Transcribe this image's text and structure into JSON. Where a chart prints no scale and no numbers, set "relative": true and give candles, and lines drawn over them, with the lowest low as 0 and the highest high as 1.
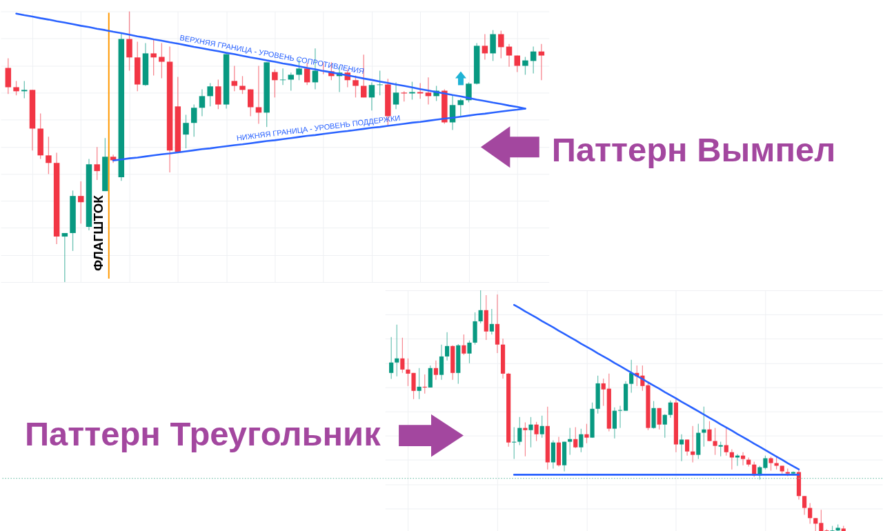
{
  "chart_data": [
    {
      "type": "candlestick",
      "title": "Паттерн Вымпел",
      "relative": true,
      "grid": true,
      "annotations": [
        "ФЛАГШТОК"
      ],
      "categories": [
        null,
        null,
        null,
        null,
        null,
        null,
        null,
        null,
        null,
        null,
        null,
        null,
        null,
        null,
        null,
        null,
        null,
        null,
        null,
        null,
        null,
        null,
        null,
        null,
        null,
        null,
        null,
        null,
        null,
        null,
        null,
        null,
        null,
        null,
        null,
        null,
        null,
        null,
        null,
        null,
        null,
        null,
        null,
        null,
        null,
        null,
        null,
        null,
        null,
        null,
        null,
        null,
        null,
        null,
        null,
        null,
        null,
        null,
        null,
        null,
        null,
        null,
        null,
        null,
        null,
        null,
        null
      ],
      "ohlc": [
        [
          0.791,
          0.827,
          0.695,
          0.72
        ],
        [
          0.72,
          0.743,
          0.69,
          0.705
        ],
        [
          0.705,
          0.743,
          0.679,
          0.71
        ],
        [
          0.71,
          0.71,
          0.486,
          0.567
        ],
        [
          0.567,
          0.623,
          0.455,
          0.468
        ],
        [
          0.468,
          0.537,
          0.399,
          0.44
        ],
        [
          0.44,
          0.478,
          0.14,
          0.168
        ],
        [
          0.168,
          0.181,
          0,
          0.181
        ],
        [
          0.181,
          0.338,
          0.115,
          0.318
        ],
        [
          0.318,
          0.372,
          0.216,
          0.295
        ],
        [
          0.204,
          0.455,
          0.191,
          0.435
        ],
        [
          0.435,
          0.499,
          0.377,
          0.41
        ],
        [
          0.336,
          0.532,
          0.336,
          0.463
        ],
        [
          0.463,
          0.471,
          0.44,
          0.45
        ],
        [
          0.387,
          0.919,
          0.374,
          0.898
        ],
        [
          0.898,
          1,
          0.781,
          0.83
        ],
        [
          0.83,
          0.888,
          0.705,
          0.73
        ],
        [
          0.728,
          0.883,
          0.725,
          0.845
        ],
        [
          0.845,
          0.896,
          0.763,
          0.83
        ],
        [
          0.832,
          0.883,
          0.753,
          0.814
        ],
        [
          0.814,
          0.87,
          0.405,
          0.486
        ],
        [
          0.649,
          0.758,
          0.481,
          0.481
        ],
        [
          0.545,
          0.618,
          0.494,
          0.588
        ],
        [
          0.588,
          0.656,
          0.537,
          0.644
        ],
        [
          0.644,
          0.712,
          0.613,
          0.687
        ],
        [
          0.687,
          0.735,
          0.649,
          0.723
        ],
        [
          0.723,
          0.748,
          0.639,
          0.656
        ],
        [
          0.656,
          0.842,
          0.641,
          0.842
        ],
        [
          0.743,
          0.799,
          0.705,
          0.725
        ],
        [
          0.725,
          0.761,
          0.695,
          0.71
        ],
        [
          0.712,
          0.712,
          0.613,
          0.646
        ],
        [
          0.646,
          0.799,
          0.585,
          0.626
        ],
        [
          0.626,
          0.812,
          0.573,
          0.812
        ],
        [
          0.776,
          0.786,
          0.682,
          0.746
        ],
        [
          0.746,
          0.789,
          0.728,
          0.748
        ],
        [
          0.748,
          0.774,
          0.707,
          0.766
        ],
        [
          0.766,
          0.824,
          0.746,
          0.789
        ],
        [
          0.789,
          0.809,
          0.728,
          0.738
        ],
        [
          0.738,
          0.863,
          0.712,
          0.781
        ],
        [
          0.781,
          0.812,
          0.768,
          0.779
        ],
        [
          0.779,
          0.812,
          0.746,
          0.761
        ],
        [
          0.761,
          0.796,
          0.702,
          0.774
        ],
        [
          0.774,
          0.786,
          0.72,
          0.746
        ],
        [
          0.746,
          0.763,
          0.682,
          0.725
        ],
        [
          0.725,
          0.84,
          0.682,
          0.682
        ],
        [
          0.682,
          0.738,
          0.634,
          0.728
        ],
        [
          0.728,
          0.781,
          0.69,
          0.73
        ],
        [
          0.73,
          0.751,
          0.575,
          0.613
        ],
        [
          0.656,
          0.738,
          0.639,
          0.7
        ],
        [
          0.7,
          0.705,
          0.667,
          0.697
        ],
        [
          0.697,
          0.74,
          0.674,
          0.702
        ],
        [
          0.702,
          0.735,
          0.677,
          0.697
        ],
        [
          0.7,
          0.756,
          0.656,
          0.687
        ],
        [
          0.687,
          0.725,
          0.669,
          0.707
        ],
        [
          0.707,
          0.712,
          0.585,
          0.59
        ],
        [
          0.59,
          0.69,
          0.562,
          0.654
        ],
        [
          0.654,
          0.677,
          0.613,
          0.672
        ],
        [
          0.672,
          0.738,
          0.664,
          0.733
        ],
        [
          0.733,
          0.883,
          0.73,
          0.873
        ],
        [
          0.873,
          0.916,
          0.822,
          0.845
        ],
        [
          0.845,
          0.931,
          0.817,
          0.916
        ],
        [
          0.916,
          0.929,
          0.827,
          0.868
        ],
        [
          0.87,
          0.88,
          0.796,
          0.837
        ],
        [
          0.837,
          0.837,
          0.776,
          0.799
        ],
        [
          0.799,
          0.832,
          0.766,
          0.819
        ],
        [
          0.817,
          0.87,
          0.771,
          0.852
        ],
        [
          0.852,
          0.88,
          0.746,
          0.837
        ]
      ],
      "colors": [
        "#f23645",
        "#f23645",
        "#089981",
        "#f23645",
        "#f23645",
        "#f23645",
        "#f23645",
        "#089981",
        "#089981",
        "#f23645",
        "#089981",
        "#f23645",
        "#089981",
        "#f23645",
        "#089981",
        "#f23645",
        "#f23645",
        "#089981",
        "#f23645",
        "#f23645",
        "#f23645",
        "#f23645",
        "#089981",
        "#089981",
        "#089981",
        "#089981",
        "#f23645",
        "#089981",
        "#f23645",
        "#f23645",
        "#f23645",
        "#f23645",
        "#089981",
        "#f23645",
        "#089981",
        "#089981",
        "#089981",
        "#f23645",
        "#089981",
        "#f23645",
        "#f23645",
        "#089981",
        "#f23645",
        "#f23645",
        "#f23645",
        "#089981",
        "#089981",
        "#f23645",
        "#089981",
        "#f23645",
        "#089981",
        "#f23645",
        "#f23645",
        "#089981",
        "#f23645",
        "#089981",
        "#089981",
        "#089981",
        "#089981",
        "#f23645",
        "#089981",
        "#f23645",
        "#f23645",
        "#f23645",
        "#089981",
        "#089981",
        "#f23645"
      ],
      "series": [
        {
          "type": "line",
          "name": "ВЕРХНЯЯ ГРАНИЦА - УРОВЕНЬ СОПРОТИВЛЕНИЯ",
          "color": "#2962ff",
          "values": [
            null,
            0.992,
            0.986,
            0.981,
            0.975,
            0.97,
            0.964,
            0.959,
            0.953,
            0.947,
            0.942,
            0.936,
            0.931,
            0.925,
            0.92,
            0.914,
            0.908,
            0.903,
            0.897,
            0.892,
            0.886,
            0.881,
            0.875,
            0.869,
            0.864,
            0.858,
            0.853,
            0.847,
            0.842,
            0.836,
            0.83,
            0.825,
            0.819,
            0.814,
            0.808,
            0.803,
            0.797,
            0.791,
            0.786,
            0.78,
            0.775,
            0.769,
            0.764,
            0.758,
            0.752,
            0.747,
            0.741,
            0.736,
            0.73,
            0.725,
            0.719,
            0.713,
            0.708,
            0.702,
            0.697,
            0.691,
            0.686,
            0.68,
            0.674,
            0.669,
            0.663,
            0.658,
            0.652,
            0.647,
            0.641,
            null,
            null
          ]
        },
        {
          "type": "line",
          "name": "НИЖНЯЯ ГРАНИЦА - УРОВЕНЬ ПОДДЕРЖКИ",
          "color": "#2962ff",
          "values": [
            null,
            null,
            null,
            null,
            null,
            null,
            null,
            null,
            null,
            null,
            null,
            null,
            null,
            0.449,
            0.453,
            0.457,
            0.46,
            0.464,
            0.468,
            0.472,
            0.475,
            0.479,
            0.483,
            0.487,
            0.491,
            0.494,
            0.498,
            0.502,
            0.506,
            0.509,
            0.513,
            0.517,
            0.521,
            0.524,
            0.528,
            0.532,
            0.536,
            0.54,
            0.543,
            0.547,
            0.551,
            0.555,
            0.558,
            0.562,
            0.566,
            0.57,
            0.573,
            0.577,
            0.581,
            0.585,
            0.589,
            0.592,
            0.596,
            0.6,
            0.604,
            0.607,
            0.611,
            0.615,
            0.619,
            0.622,
            0.626,
            0.63,
            0.634,
            0.637,
            0.641,
            null,
            null
          ]
        }
      ]
    },
    {
      "type": "candlestick",
      "title": "Паттерн Треугольник",
      "relative": true,
      "grid": true,
      "categories": [
        null,
        null,
        null,
        null,
        null,
        null,
        null,
        null,
        null,
        null,
        null,
        null,
        null,
        null,
        null,
        null,
        null,
        null,
        null,
        null,
        null,
        null,
        null,
        null,
        null,
        null,
        null,
        null,
        null,
        null,
        null,
        null,
        null,
        null,
        null,
        null,
        null,
        null,
        null,
        null,
        null,
        null,
        null,
        null,
        null,
        null,
        null,
        null,
        null,
        null,
        null,
        null,
        null,
        null,
        null,
        null,
        null,
        null,
        null,
        null,
        null,
        null,
        null,
        null,
        null,
        null,
        null,
        null,
        null,
        null,
        null,
        null,
        null,
        null,
        null,
        null,
        null,
        null,
        null,
        null,
        null,
        null
      ],
      "ohlc": [
        [
          0.659,
          0.807,
          0.634,
          0.702
        ],
        [
          0.702,
          0.858,
          0.645,
          0.719
        ],
        [
          0.719,
          0.804,
          0.659,
          0.673
        ],
        [
          0.673,
          0.719,
          0.605,
          0.656
        ],
        [
          0.659,
          0.659,
          0.551,
          0.585
        ],
        [
          0.585,
          0.679,
          0.551,
          0.602
        ],
        [
          0.602,
          0.653,
          0.574,
          0.599
        ],
        [
          0.599,
          0.69,
          0.599,
          0.679
        ],
        [
          0.679,
          0.71,
          0.631,
          0.651
        ],
        [
          0.651,
          0.776,
          0.631,
          0.727
        ],
        [
          0.727,
          0.827,
          0.71,
          0.77
        ],
        [
          0.77,
          0.773,
          0.631,
          0.659
        ],
        [
          0.659,
          0.778,
          0.614,
          0.773
        ],
        [
          0.773,
          0.818,
          0.733,
          0.739
        ],
        [
          0.739,
          0.793,
          0.699,
          0.784
        ],
        [
          0.784,
          0.909,
          0.776,
          0.872
        ],
        [
          0.872,
          1,
          0.864,
          0.918
        ],
        [
          0.918,
          0.98,
          0.795,
          0.83
        ],
        [
          0.83,
          0.923,
          0.818,
          0.861
        ],
        [
          0.861,
          0.983,
          0.741,
          0.776
        ],
        [
          0.776,
          0.801,
          0.636,
          0.656
        ],
        [
          0.656,
          0.659,
          0.355,
          0.372
        ],
        [
          0.372,
          0.435,
          0.304,
          0.375
        ],
        [
          0.375,
          0.477,
          0.361,
          0.432
        ],
        [
          0.432,
          0.455,
          0.315,
          0.423
        ],
        [
          0.423,
          0.477,
          0.352,
          0.446
        ],
        [
          0.446,
          0.457,
          0.378,
          0.406
        ],
        [
          0.406,
          0.483,
          0.392,
          0.44
        ],
        [
          0.44,
          0.52,
          0.261,
          0.29
        ],
        [
          0.29,
          0.381,
          0.264,
          0.372
        ],
        [
          0.372,
          0.395,
          0.273,
          0.278
        ],
        [
          0.278,
          0.375,
          0.253,
          0.375
        ],
        [
          0.375,
          0.432,
          0.321,
          0.386
        ],
        [
          0.386,
          0.435,
          0.349,
          0.352
        ],
        [
          0.352,
          0.429,
          0.332,
          0.406
        ],
        [
          0.406,
          0.449,
          0.369,
          0.392
        ],
        [
          0.392,
          0.537,
          0.392,
          0.511
        ],
        [
          0.511,
          0.648,
          0.491,
          0.616
        ],
        [
          0.616,
          0.636,
          0.523,
          0.591
        ],
        [
          0.594,
          0.656,
          0.418,
          0.429
        ],
        [
          0.429,
          0.517,
          0.389,
          0.503
        ],
        [
          0.503,
          0.523,
          0.432,
          0.506
        ],
        [
          0.503,
          0.625,
          0.503,
          0.614
        ],
        [
          0.614,
          0.713,
          0.577,
          0.659
        ],
        [
          0.659,
          0.69,
          0.605,
          0.645
        ],
        [
          0.648,
          0.69,
          0.585,
          0.605
        ],
        [
          0.608,
          0.622,
          0.423,
          0.432
        ],
        [
          0.432,
          0.543,
          0.429,
          0.514
        ],
        [
          0.514,
          0.514,
          0.426,
          0.446
        ],
        [
          0.446,
          0.489,
          0.392,
          0.486
        ],
        [
          0.486,
          0.545,
          0.474,
          0.537
        ],
        [
          0.537,
          0.554,
          0.332,
          0.364
        ],
        [
          0.364,
          0.406,
          0.295,
          0.384
        ],
        [
          0.384,
          0.384,
          0.318,
          0.335
        ],
        [
          0.335,
          0.44,
          0.29,
          0.321
        ],
        [
          0.321,
          0.449,
          0.304,
          0.412
        ],
        [
          0.412,
          0.52,
          0.355,
          0.426
        ],
        [
          0.426,
          0.46,
          0.378,
          0.378
        ],
        [
          0.378,
          0.432,
          0.321,
          0.358
        ],
        [
          0.355,
          0.375,
          0.315,
          0.361
        ],
        [
          0.361,
          0.435,
          0.318,
          0.332
        ],
        [
          0.332,
          0.344,
          0.261,
          0.31
        ],
        [
          0.31,
          0.324,
          0.276,
          0.318
        ],
        [
          0.318,
          0.332,
          0.278,
          0.304
        ],
        [
          0.301,
          0.31,
          0.273,
          0.281
        ],
        [
          0.281,
          0.293,
          0.23,
          0.236
        ],
        [
          0.236,
          0.276,
          0.219,
          0.27
        ],
        [
          0.267,
          0.318,
          0.261,
          0.307
        ],
        [
          0.307,
          0.313,
          0.256,
          0.287
        ],
        [
          0.287,
          0.313,
          0.261,
          0.276
        ],
        [
          0.276,
          0.276,
          0.244,
          0.253
        ],
        [
          0.25,
          0.264,
          0.233,
          0.244
        ],
        [
          0.244,
          0.253,
          0.236,
          0.25
        ],
        [
          0.25,
          0.264,
          0.136,
          0.151
        ],
        [
          0.151,
          0.151,
          0.074,
          0.102
        ],
        [
          0.102,
          0.122,
          0.037,
          0.06
        ],
        [
          0.06,
          0.06,
          0.006,
          0.037
        ],
        [
          0.04,
          0.094,
          0,
          0
        ],
        [
          0.009,
          0.014,
          0,
          0
        ],
        [
          0,
          0.028,
          0,
          0.009
        ],
        [
          0.009,
          0.034,
          0,
          0.02
        ],
        [
          0.017,
          0.028,
          0,
          0
        ]
      ],
      "colors": [
        "#089981",
        "#089981",
        "#f23645",
        "#f23645",
        "#f23645",
        "#089981",
        "#f23645",
        "#089981",
        "#f23645",
        "#089981",
        "#089981",
        "#f23645",
        "#089981",
        "#f23645",
        "#089981",
        "#089981",
        "#089981",
        "#f23645",
        "#089981",
        "#f23645",
        "#f23645",
        "#f23645",
        "#089981",
        "#089981",
        "#f23645",
        "#089981",
        "#f23645",
        "#089981",
        "#f23645",
        "#089981",
        "#f23645",
        "#089981",
        "#089981",
        "#f23645",
        "#089981",
        "#f23645",
        "#089981",
        "#089981",
        "#f23645",
        "#f23645",
        "#089981",
        "#089981",
        "#089981",
        "#089981",
        "#f23645",
        "#f23645",
        "#f23645",
        "#089981",
        "#f23645",
        "#089981",
        "#089981",
        "#f23645",
        "#089981",
        "#f23645",
        "#f23645",
        "#089981",
        "#089981",
        "#f23645",
        "#f23645",
        "#089981",
        "#f23645",
        "#f23645",
        "#089981",
        "#f23645",
        "#f23645",
        "#f23645",
        "#089981",
        "#089981",
        "#f23645",
        "#f23645",
        "#f23645",
        "#f23645",
        "#089981",
        "#f23645",
        "#f23645",
        "#f23645",
        "#f23645",
        "#f23645",
        "#f23645",
        "#089981",
        "#089981",
        "#f23645"
      ],
      "series": [
        {
          "type": "line",
          "color": "#2962ff",
          "values": [
            null,
            null,
            null,
            null,
            null,
            null,
            null,
            null,
            null,
            null,
            null,
            null,
            null,
            null,
            null,
            null,
            null,
            null,
            null,
            null,
            null,
            null,
            0.94,
            0.927,
            0.913,
            0.9,
            0.887,
            0.873,
            0.86,
            0.847,
            0.833,
            0.82,
            0.807,
            0.794,
            0.78,
            0.767,
            0.754,
            0.74,
            0.727,
            0.714,
            0.7,
            0.687,
            0.674,
            0.66,
            0.647,
            0.634,
            0.62,
            0.607,
            0.594,
            0.58,
            0.567,
            0.554,
            0.54,
            0.527,
            0.514,
            0.501,
            0.487,
            0.474,
            0.461,
            0.447,
            0.434,
            0.421,
            0.407,
            0.394,
            0.381,
            0.367,
            0.354,
            0.341,
            0.327,
            0.314,
            0.301,
            0.287,
            0.274,
            0.261,
            null,
            null,
            null,
            null,
            null,
            null,
            null,
            null
          ]
        },
        {
          "type": "line",
          "color": "#2962ff",
          "values": [
            null,
            null,
            null,
            null,
            null,
            null,
            null,
            null,
            null,
            null,
            null,
            null,
            null,
            null,
            null,
            null,
            null,
            null,
            null,
            null,
            null,
            null,
            0.239,
            0.239,
            0.239,
            0.239,
            0.239,
            0.239,
            0.239,
            0.239,
            0.239,
            0.239,
            0.239,
            0.239,
            0.239,
            0.239,
            0.239,
            0.239,
            0.239,
            0.239,
            0.239,
            0.239,
            0.239,
            0.239,
            0.239,
            0.239,
            0.239,
            0.239,
            0.239,
            0.239,
            0.239,
            0.239,
            0.239,
            0.239,
            0.239,
            0.239,
            0.239,
            0.239,
            0.239,
            0.239,
            0.239,
            0.239,
            0.239,
            0.239,
            0.239,
            0.239,
            0.239,
            0.239,
            0.239,
            0.239,
            0.239,
            0.239,
            0.239,
            0.239,
            null,
            null,
            null,
            null,
            null,
            null,
            null,
            null
          ]
        }
      ],
      "ref_lines": [
        {
          "axis": "y",
          "value": 0.224,
          "color": "#7cc4b0",
          "line_style": "dotted"
        }
      ]
    }
  ]
}
